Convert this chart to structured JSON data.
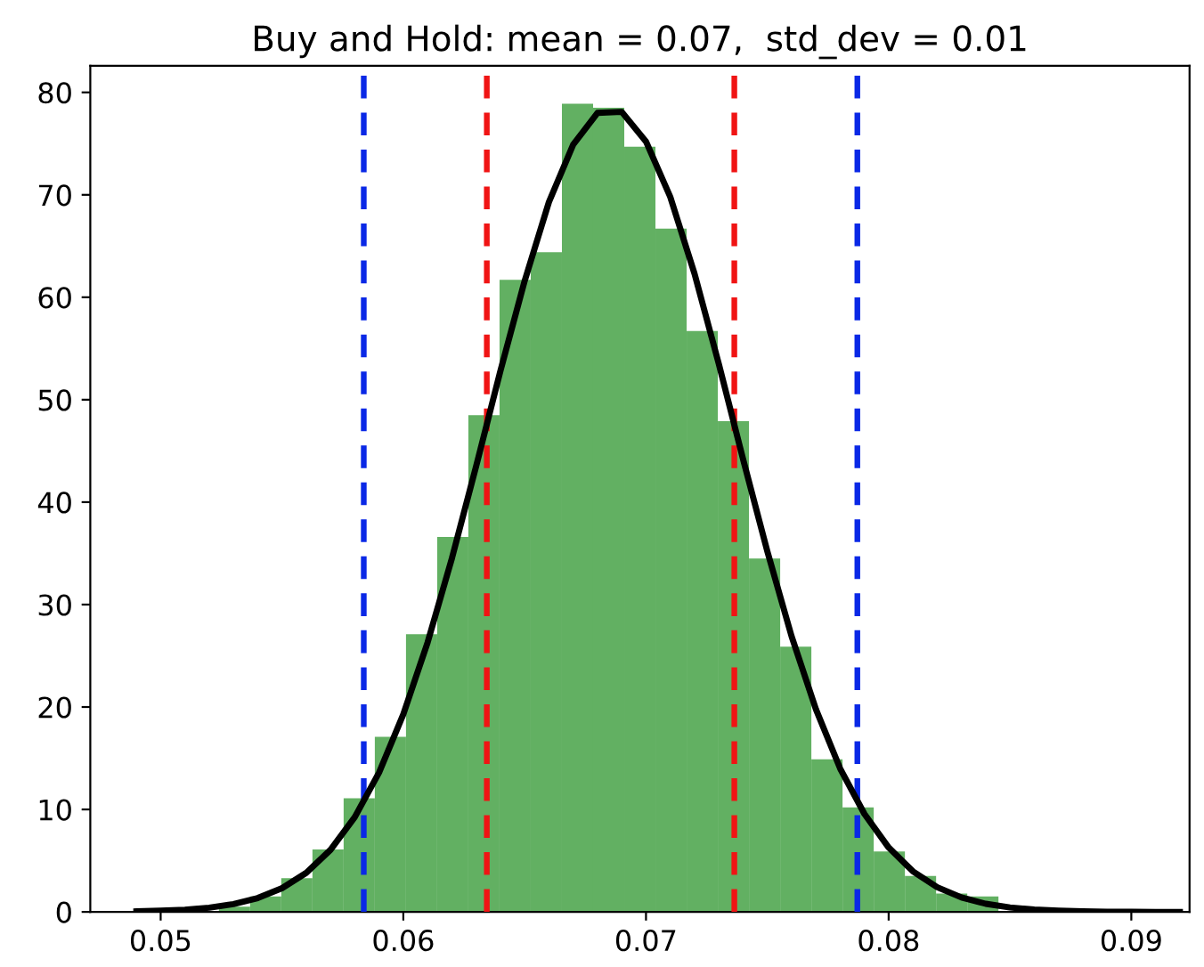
{
  "chart_data": {
    "type": "histogram",
    "title": "Buy and Hold: mean = 0.07,  std_dev = 0.01",
    "bins": [
      0.0524,
      0.053685,
      0.05497,
      0.056255,
      0.05754,
      0.058825,
      0.06011,
      0.061395,
      0.06268,
      0.063965,
      0.06525,
      0.066535,
      0.06782,
      0.069105,
      0.07039,
      0.071675,
      0.07296,
      0.074245,
      0.07553,
      0.076815,
      0.0781,
      0.079385,
      0.08067,
      0.081955,
      0.08324,
      0.084525
    ],
    "values": [
      0.5,
      1.5,
      3.3,
      6.1,
      11.1,
      17.1,
      27.1,
      36.6,
      48.5,
      61.7,
      64.4,
      78.9,
      78.5,
      74.7,
      66.7,
      56.7,
      47.9,
      34.5,
      25.9,
      14.9,
      10.2,
      5.9,
      3.5,
      1.8,
      1.5
    ],
    "color": "#62b062",
    "series": [
      {
        "type": "line",
        "color": "#000000",
        "x": [
          0.049,
          0.05,
          0.051,
          0.052,
          0.053,
          0.054,
          0.055,
          0.056,
          0.057,
          0.058,
          0.059,
          0.06,
          0.061,
          0.062,
          0.063,
          0.064,
          0.065,
          0.066,
          0.067,
          0.068,
          0.069,
          0.07,
          0.071,
          0.072,
          0.073,
          0.074,
          0.075,
          0.076,
          0.077,
          0.078,
          0.079,
          0.08,
          0.081,
          0.082,
          0.083,
          0.084,
          0.085,
          0.086,
          0.087,
          0.088,
          0.089,
          0.09,
          0.091,
          0.092
        ],
        "values": [
          0.05,
          0.11,
          0.21,
          0.41,
          0.76,
          1.35,
          2.31,
          3.81,
          6.06,
          9.26,
          13.6,
          19.3,
          26.3,
          34.5,
          43.5,
          52.8,
          61.6,
          69.3,
          74.9,
          78.0,
          78.1,
          75.2,
          69.8,
          62.3,
          53.5,
          44.2,
          35.2,
          26.9,
          19.8,
          14.0,
          9.57,
          6.28,
          3.96,
          2.41,
          1.41,
          0.79,
          0.43,
          0.22,
          0.11,
          0.05,
          0.02,
          0.01,
          0.0,
          0.0
        ]
      }
    ],
    "ref_lines": [
      {
        "axis": "x",
        "value": 0.05837,
        "color": "#0a28e6",
        "line_style": "dashed"
      },
      {
        "axis": "x",
        "value": 0.06344,
        "color": "#f01414",
        "line_style": "dashed"
      },
      {
        "axis": "x",
        "value": 0.07364,
        "color": "#f01414",
        "line_style": "dashed"
      },
      {
        "axis": "x",
        "value": 0.07871,
        "color": "#0a28e6",
        "line_style": "dashed"
      }
    ],
    "xlim": [
      0.0471,
      0.0924
    ],
    "xticks": [
      0.05,
      0.06,
      0.07,
      0.08,
      0.09
    ],
    "ylim": [
      0,
      82.6
    ],
    "yticks": [
      0,
      10,
      20,
      30,
      40,
      50,
      60,
      70,
      80
    ],
    "grid": false
  }
}
